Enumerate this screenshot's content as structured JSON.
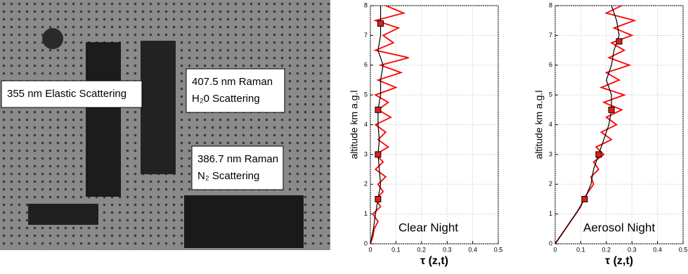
{
  "photo": {
    "labels": [
      [
        "355 nm Elastic Scattering"
      ],
      [
        "407.5 nm Raman",
        "H₂0 Scattering"
      ],
      [
        "386.7 nm Raman",
        "N₂ Scattering"
      ]
    ]
  },
  "chart_data": [
    {
      "type": "line",
      "annotation": "Clear Night",
      "ylabel": "altitude km a.g.l",
      "xlabel": "τ (z,t)",
      "xlim": [
        0,
        0.5
      ],
      "xticks": [
        0,
        0.1,
        0.2,
        0.3,
        0.4,
        0.5
      ],
      "ylim": [
        0,
        8
      ],
      "yticks": [
        0,
        1,
        2,
        3,
        4,
        5,
        6,
        7,
        8
      ],
      "grid": true,
      "series": [
        {
          "color": "#ff0000",
          "y": [
            0,
            0.25,
            0.5,
            0.75,
            1,
            1.25,
            1.5,
            1.75,
            2,
            2.25,
            2.5,
            2.75,
            3,
            3.25,
            3.5,
            3.75,
            4,
            4.25,
            4.5,
            4.75,
            5,
            5.25,
            5.5,
            5.75,
            6,
            6.25,
            6.5,
            6.75,
            7,
            7.25,
            7.5,
            7.75,
            8
          ],
          "values": [
            0,
            0.01,
            0.015,
            0.03,
            0.01,
            0.04,
            0.02,
            0.05,
            0.03,
            0.06,
            0.02,
            0.05,
            0.02,
            0.07,
            0.03,
            0.06,
            0.02,
            0.08,
            0.03,
            0.07,
            0.02,
            0.1,
            0.03,
            0.12,
            0.04,
            0.15,
            0.02,
            0.09,
            0.05,
            0.11,
            0.02,
            0.13,
            0.06
          ]
        },
        {
          "color": "#000000",
          "y": [
            0,
            0.5,
            1,
            1.5,
            2,
            2.5,
            3,
            3.5,
            4,
            4.5,
            5,
            5.5,
            6,
            6.5,
            7,
            7.5,
            8
          ],
          "values": [
            0,
            0.012,
            0.02,
            0.03,
            0.04,
            0.035,
            0.03,
            0.035,
            0.03,
            0.03,
            0.04,
            0.04,
            0.05,
            0.03,
            0.04,
            0.04,
            0.04
          ]
        },
        {
          "color": "#e0201a",
          "marker": "square",
          "y": [
            1.5,
            3,
            4.5,
            7.4
          ],
          "values": [
            0.03,
            0.03,
            0.03,
            0.04
          ]
        }
      ]
    },
    {
      "type": "line",
      "annotation": "Aerosol Night",
      "ylabel": "altitude km a.g.l",
      "xlabel": "τ (z,t)",
      "xlim": [
        0,
        0.5
      ],
      "xticks": [
        0,
        0.1,
        0.2,
        0.3,
        0.4,
        0.5
      ],
      "ylim": [
        0,
        8
      ],
      "yticks": [
        0,
        1,
        2,
        3,
        4,
        5,
        6,
        7,
        8
      ],
      "grid": true,
      "series": [
        {
          "color": "#ff0000",
          "y": [
            0,
            0.25,
            0.5,
            0.75,
            1,
            1.25,
            1.5,
            1.75,
            2,
            2.25,
            2.5,
            2.75,
            3,
            3.25,
            3.5,
            3.75,
            4,
            4.25,
            4.5,
            4.75,
            5,
            5.25,
            5.5,
            5.75,
            6,
            6.25,
            6.5,
            6.75,
            7,
            7.25,
            7.5,
            7.75,
            8
          ],
          "values": [
            0,
            0.02,
            0.04,
            0.06,
            0.08,
            0.1,
            0.11,
            0.13,
            0.15,
            0.14,
            0.17,
            0.15,
            0.19,
            0.16,
            0.22,
            0.18,
            0.24,
            0.2,
            0.26,
            0.19,
            0.27,
            0.18,
            0.25,
            0.2,
            0.29,
            0.21,
            0.27,
            0.22,
            0.3,
            0.23,
            0.31,
            0.2,
            0.26
          ]
        },
        {
          "color": "#000000",
          "y": [
            0,
            0.5,
            1,
            1.5,
            2,
            2.5,
            3,
            3.5,
            4,
            4.5,
            5,
            5.5,
            6,
            6.5,
            7,
            7.5,
            8
          ],
          "values": [
            0,
            0.04,
            0.08,
            0.115,
            0.14,
            0.15,
            0.17,
            0.19,
            0.21,
            0.22,
            0.22,
            0.2,
            0.22,
            0.23,
            0.25,
            0.24,
            0.22
          ]
        },
        {
          "color": "#e0201a",
          "marker": "square",
          "y": [
            1.5,
            3,
            4.5,
            6.8
          ],
          "values": [
            0.115,
            0.17,
            0.22,
            0.25
          ]
        }
      ]
    }
  ]
}
